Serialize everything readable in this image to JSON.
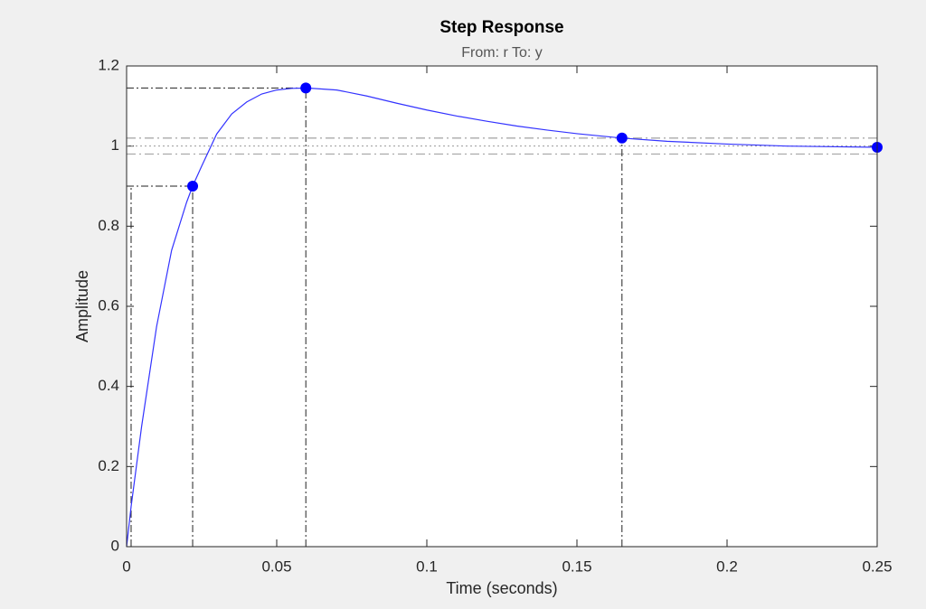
{
  "chart_data": {
    "type": "line",
    "title": "Step Response",
    "subtitle": "From: r  To: y",
    "xlabel": "Time (seconds)",
    "ylabel": "Amplitude",
    "x": [
      0,
      0.0015,
      0.005,
      0.01,
      0.015,
      0.02,
      0.022,
      0.025,
      0.03,
      0.035,
      0.04,
      0.045,
      0.05,
      0.055,
      0.06,
      0.07,
      0.08,
      0.09,
      0.1,
      0.11,
      0.12,
      0.13,
      0.14,
      0.15,
      0.165,
      0.18,
      0.2,
      0.22,
      0.25
    ],
    "series": [
      {
        "color": "#3333ff",
        "values": [
          0,
          0.1,
          0.3,
          0.55,
          0.74,
          0.86,
          0.9,
          0.95,
          1.03,
          1.08,
          1.11,
          1.13,
          1.14,
          1.144,
          1.145,
          1.14,
          1.125,
          1.107,
          1.09,
          1.075,
          1.062,
          1.05,
          1.04,
          1.031,
          1.02,
          1.012,
          1.005,
          1.0,
          0.997
        ]
      }
    ],
    "characteristic_points": {
      "color": "#0000ff",
      "x": [
        0.022,
        0.0597,
        0.165,
        0.25
      ],
      "y": [
        0.9,
        1.145,
        1.02,
        0.997
      ]
    },
    "rise_time_start": {
      "x": 0.0015
    },
    "settling_band": [
      0.98,
      1.02
    ],
    "final_value": 1,
    "xlim": [
      0,
      0.25
    ],
    "ylim": [
      0,
      1.2
    ],
    "xticks": [
      0,
      0.05,
      0.1,
      0.15,
      0.2,
      0.25
    ],
    "yticks": [
      0,
      0.2,
      0.4,
      0.6,
      0.8,
      1,
      1.2
    ],
    "grid": false
  }
}
